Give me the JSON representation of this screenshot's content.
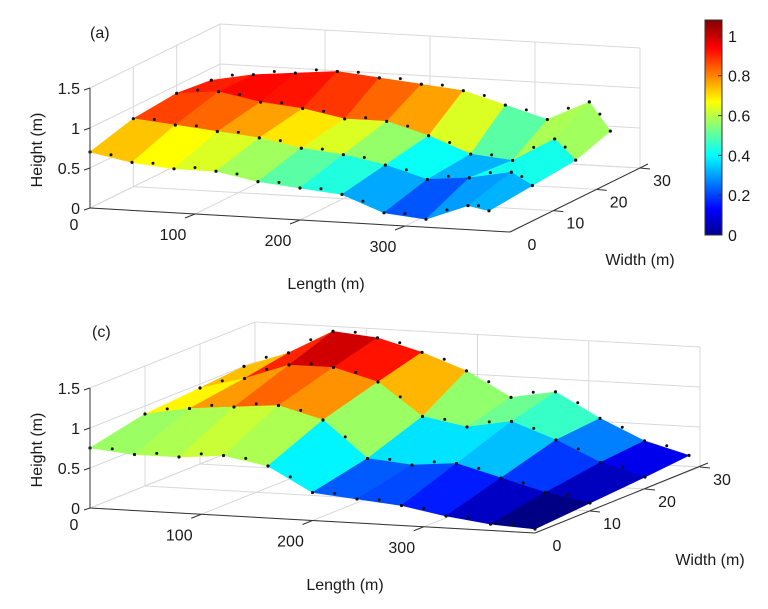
{
  "figure": {
    "colorbar": {
      "ticks": [
        "0",
        "0.2",
        "0.4",
        "0.6",
        "0.8",
        "1"
      ],
      "tick_values": [
        0,
        0.2,
        0.4,
        0.6,
        0.8,
        1.0
      ],
      "range": [
        0,
        1.08
      ],
      "colormap": "jet",
      "colors": [
        "#00008f",
        "#0000ff",
        "#0080ff",
        "#00ffff",
        "#80ff80",
        "#ffff00",
        "#ff8000",
        "#ff0000",
        "#800000"
      ]
    }
  },
  "chart_data": [
    {
      "panel": "(a)",
      "type": "surface3d",
      "title": "",
      "xlabel": "Length (m)",
      "ylabel": "Width (m)",
      "zlabel": "Height (m)",
      "x_ticks": [
        "0",
        "100",
        "200",
        "300"
      ],
      "y_ticks": [
        "0",
        "10",
        "20",
        "30"
      ],
      "z_ticks": [
        "0",
        "0.5",
        "1",
        "1.5"
      ],
      "xlim": [
        0,
        400
      ],
      "ylim": [
        0,
        30
      ],
      "zlim": [
        0,
        1.5
      ],
      "grid": true,
      "colorbar": true,
      "ridges": [
        {
          "width": 28,
          "x": [
            0,
            40,
            80,
            120,
            160,
            200,
            240,
            280,
            320,
            360,
            380
          ],
          "z": [
            0.85,
            0.95,
            1.0,
            1.05,
            1.0,
            0.95,
            0.9,
            0.75,
            0.6,
            0.85,
            0.5
          ]
        },
        {
          "width": 20,
          "x": [
            0,
            40,
            80,
            120,
            160,
            200,
            240,
            280,
            320,
            360,
            380
          ],
          "z": [
            0.9,
            0.95,
            0.85,
            0.8,
            0.7,
            0.7,
            0.55,
            0.35,
            0.3,
            0.6,
            0.35
          ]
        },
        {
          "width": 10,
          "x": [
            0,
            40,
            80,
            120,
            160,
            200,
            240,
            280,
            320,
            360,
            380
          ],
          "z": [
            0.85,
            0.8,
            0.75,
            0.7,
            0.6,
            0.55,
            0.45,
            0.3,
            0.35,
            0.45,
            0.3
          ]
        },
        {
          "width": 0,
          "x": [
            0,
            40,
            80,
            120,
            160,
            200,
            240,
            280,
            320,
            360,
            380
          ],
          "z": [
            0.7,
            0.6,
            0.55,
            0.55,
            0.45,
            0.4,
            0.35,
            0.15,
            0.1,
            0.3,
            0.25
          ]
        }
      ]
    },
    {
      "panel": "(c)",
      "type": "surface3d",
      "title": "",
      "xlabel": "Length (m)",
      "ylabel": "Width (m)",
      "zlabel": "Height (m)",
      "x_ticks": [
        "0",
        "100",
        "200",
        "300"
      ],
      "y_ticks": [
        "0",
        "10",
        "20",
        "30"
      ],
      "z_ticks": [
        "0",
        "0.5",
        "1",
        "1.5"
      ],
      "xlim": [
        0,
        400
      ],
      "ylim": [
        0,
        30
      ],
      "zlim": [
        0,
        1.5
      ],
      "grid": true,
      "ridges": [
        {
          "width": 28,
          "x": [
            0,
            40,
            80,
            120,
            160,
            200,
            240,
            280,
            320,
            360,
            400
          ],
          "z": [
            1.0,
            1.2,
            1.5,
            1.45,
            1.3,
            1.1,
            0.8,
            0.9,
            0.6,
            0.35,
            0.2
          ]
        },
        {
          "width": 20,
          "x": [
            0,
            40,
            80,
            120,
            160,
            200,
            240,
            280,
            320,
            360,
            400
          ],
          "z": [
            0.95,
            1.1,
            1.3,
            1.3,
            1.15,
            0.75,
            0.65,
            0.75,
            0.55,
            0.3,
            0.15
          ]
        },
        {
          "width": 10,
          "x": [
            0,
            40,
            80,
            120,
            160,
            200,
            240,
            280,
            320,
            360,
            400
          ],
          "z": [
            0.9,
            1.0,
            1.05,
            1.1,
            0.95,
            0.5,
            0.45,
            0.5,
            0.35,
            0.2,
            0.1
          ]
        },
        {
          "width": 0,
          "x": [
            0,
            40,
            80,
            120,
            160,
            200,
            240,
            280,
            320,
            360,
            400
          ],
          "z": [
            0.75,
            0.7,
            0.7,
            0.75,
            0.65,
            0.35,
            0.3,
            0.25,
            0.15,
            0.08,
            0.05
          ]
        }
      ]
    }
  ],
  "panels": [
    {
      "label": "(a)",
      "xlabel": "Length (m)",
      "ylabel": "Width (m)",
      "zlabel": "Height (m)"
    },
    {
      "label": "(c)",
      "xlabel": "Length (m)",
      "ylabel": "Width (m)",
      "zlabel": "Height (m)"
    }
  ]
}
